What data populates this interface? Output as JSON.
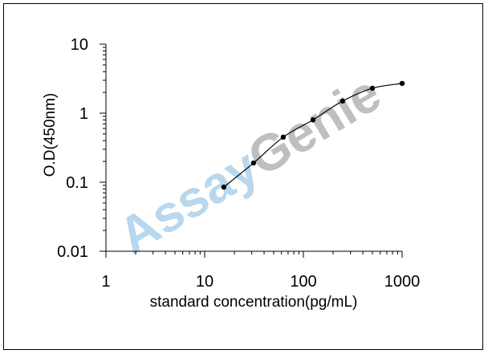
{
  "chart_data": {
    "type": "line",
    "title": "",
    "xlabel": "standard concentration(pg/mL)",
    "ylabel": "O.D(450nm)",
    "xscale": "log",
    "yscale": "log",
    "xlim": [
      1,
      1000
    ],
    "ylim": [
      0.01,
      10
    ],
    "x_ticks": [
      1,
      10,
      100,
      1000
    ],
    "x_tick_labels": [
      "1",
      "10",
      "100",
      "1000"
    ],
    "y_ticks": [
      0.01,
      0.1,
      1,
      10
    ],
    "y_tick_labels": [
      "0.01",
      "0.1",
      "1",
      "10"
    ],
    "grid": false,
    "legend": "none",
    "series": [
      {
        "x": [
          15.63,
          31.25,
          62.5,
          125,
          250,
          500,
          1000
        ],
        "y": [
          0.085,
          0.19,
          0.45,
          0.8,
          1.5,
          2.3,
          2.7
        ]
      }
    ],
    "watermark": "AssayGenie",
    "colors": {
      "line": "#000000",
      "marker": "#000000",
      "watermark": "#7fb7df"
    }
  }
}
